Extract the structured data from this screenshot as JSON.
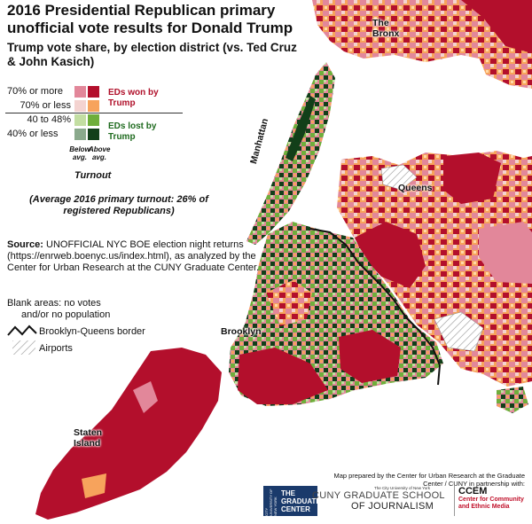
{
  "title": "2016 Presidential Republican primary unofficial vote results for Donald Trump",
  "subtitle": "Trump vote share, by election district (vs. Ted Cruz & John Kasich)",
  "legend": {
    "rows": [
      {
        "label": "70% or more",
        "colors": [
          "#e2879a",
          "#b30f2c"
        ]
      },
      {
        "label": "70% or less",
        "colors": [
          "#f4d3d0",
          "#f7a35c"
        ]
      },
      {
        "label": "40 to 48%",
        "colors": [
          "#c3dea2",
          "#6fae3b"
        ]
      },
      {
        "label": "40% or less",
        "colors": [
          "#8aa98c",
          "#123f19"
        ]
      }
    ],
    "won_label": "EDs won by Trump",
    "lost_label": "EDs lost by Trump",
    "below_label": "Below avg.",
    "above_label": "Above avg.",
    "turnout_label": "Turnout"
  },
  "turnout_note": "(Average 2016 primary turnout: 26% of registered Republicans)",
  "source": {
    "label": "Source:",
    "text": "UNOFFICIAL NYC BOE election night returns (https://enrweb.boenyc.us/index.html), as analyzed by the Center for Urban Research at the CUNY Graduate Center."
  },
  "key": {
    "blank_areas": "Blank areas: no votes",
    "blank_areas_2": "and/or no population",
    "border": "Brooklyn-Queens border",
    "airports": "Airports"
  },
  "boroughs": {
    "bronx": "The Bronx",
    "manhattan": "Manhattan",
    "queens": "Queens",
    "brooklyn": "Brooklyn",
    "staten_island": "Staten Island"
  },
  "credit": "Map prepared by the Center for Urban Research at the Graduate Center / CUNY in partnership with:",
  "logos": {
    "gc": "THE GRADUATE CENTER",
    "gc_side": "CITY UNIVERSITY OF NEW YORK",
    "journalism_top": "The City University of New York",
    "journalism_1": "CUNY GRADUATE SCHOOL",
    "journalism_2": "OF JOURNALISM",
    "ccem": "CCEM",
    "ccem_sub": "Center for Community and Ethnic Media"
  },
  "colors": {
    "water": "#ffffff",
    "land_blank": "#ffffff",
    "won_below": "#e2879a",
    "won_above": "#b30f2c",
    "won_le70_below": "#f4d3d0",
    "won_le70_above": "#f7a35c",
    "lost_40_48_below": "#c3dea2",
    "lost_40_48_above": "#6fae3b",
    "lost_le40_below": "#8aa98c",
    "lost_le40_above": "#123f19"
  }
}
